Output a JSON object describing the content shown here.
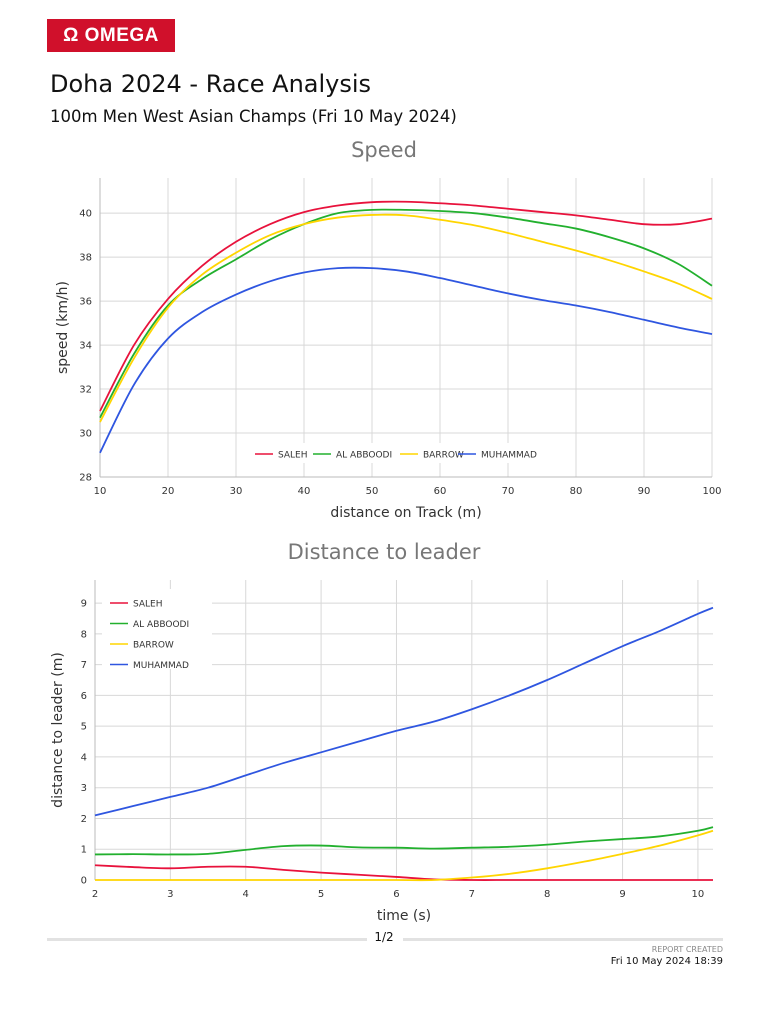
{
  "header": {
    "logo_text": "Ω OMEGA",
    "title": "Doha 2024 - Race Analysis",
    "subtitle": "100m Men West Asian Champs (Fri 10 May 2024)"
  },
  "colors": {
    "SALEH": "#e8123c",
    "AL ABBOODI": "#22b02e",
    "BARROW": "#ffd500",
    "MUHAMMAD": "#2f56e0",
    "logo": "#d0102b"
  },
  "chart_data": [
    {
      "type": "line",
      "title": "Speed",
      "xlabel": "distance on Track (m)",
      "ylabel": "speed (km/h)",
      "xlim": [
        10,
        100
      ],
      "ylim": [
        28,
        41.6
      ],
      "xticks": [
        10,
        20,
        30,
        40,
        50,
        60,
        70,
        80,
        90,
        100
      ],
      "yticks": [
        28,
        30,
        32,
        34,
        36,
        38,
        40
      ],
      "grid": true,
      "legend": "bottom-center",
      "x": [
        10,
        15,
        20,
        25,
        30,
        35,
        40,
        45,
        50,
        55,
        60,
        65,
        70,
        75,
        80,
        85,
        90,
        95,
        100
      ],
      "series": [
        {
          "name": "SALEH",
          "values": [
            31.0,
            34.0,
            36.1,
            37.6,
            38.7,
            39.5,
            40.05,
            40.35,
            40.5,
            40.52,
            40.45,
            40.35,
            40.2,
            40.05,
            39.9,
            39.7,
            39.5,
            39.5,
            39.75
          ]
        },
        {
          "name": "AL ABBOODI",
          "values": [
            30.7,
            33.6,
            35.8,
            37.0,
            37.9,
            38.8,
            39.5,
            40.0,
            40.15,
            40.15,
            40.1,
            40.0,
            39.8,
            39.55,
            39.3,
            38.9,
            38.4,
            37.7,
            36.7
          ]
        },
        {
          "name": "BARROW",
          "values": [
            30.5,
            33.4,
            35.7,
            37.2,
            38.2,
            39.0,
            39.5,
            39.8,
            39.92,
            39.9,
            39.7,
            39.45,
            39.1,
            38.7,
            38.3,
            37.85,
            37.35,
            36.8,
            36.1
          ]
        },
        {
          "name": "MUHAMMAD",
          "values": [
            29.1,
            32.2,
            34.3,
            35.5,
            36.3,
            36.9,
            37.3,
            37.5,
            37.5,
            37.35,
            37.05,
            36.7,
            36.35,
            36.05,
            35.8,
            35.5,
            35.15,
            34.8,
            34.5
          ]
        }
      ]
    },
    {
      "type": "line",
      "title": "Distance to leader",
      "xlabel": "time (s)",
      "ylabel": "distance to leader (m)",
      "xlim": [
        2,
        10.2
      ],
      "ylim": [
        0,
        9.75
      ],
      "xticks": [
        2,
        3,
        4,
        5,
        6,
        7,
        8,
        9,
        10
      ],
      "yticks": [
        0,
        1,
        2,
        3,
        4,
        5,
        6,
        7,
        8,
        9
      ],
      "grid": true,
      "legend": "top-left",
      "x": [
        2,
        2.5,
        3,
        3.5,
        4,
        4.5,
        5,
        5.5,
        6,
        6.5,
        7,
        7.5,
        8,
        8.5,
        9,
        9.5,
        10,
        10.2
      ],
      "series": [
        {
          "name": "SALEH",
          "values": [
            0.48,
            0.42,
            0.38,
            0.43,
            0.43,
            0.33,
            0.24,
            0.17,
            0.1,
            0.02,
            0,
            0,
            0,
            0,
            0,
            0,
            0,
            0
          ]
        },
        {
          "name": "AL ABBOODI",
          "values": [
            0.83,
            0.84,
            0.83,
            0.85,
            0.98,
            1.1,
            1.12,
            1.06,
            1.05,
            1.02,
            1.05,
            1.08,
            1.15,
            1.25,
            1.33,
            1.42,
            1.6,
            1.72
          ]
        },
        {
          "name": "BARROW",
          "values": [
            0,
            0,
            0,
            0,
            0,
            0,
            0,
            0,
            0,
            0,
            0.08,
            0.2,
            0.38,
            0.6,
            0.85,
            1.12,
            1.45,
            1.6
          ]
        },
        {
          "name": "MUHAMMAD",
          "values": [
            2.1,
            2.4,
            2.7,
            3.0,
            3.4,
            3.8,
            4.15,
            4.5,
            4.85,
            5.15,
            5.55,
            6.0,
            6.5,
            7.05,
            7.6,
            8.1,
            8.65,
            8.85
          ]
        }
      ]
    }
  ],
  "footer": {
    "page": "1/2",
    "report_created_label": "REPORT CREATED",
    "report_created": "Fri 10 May 2024 18:39"
  }
}
